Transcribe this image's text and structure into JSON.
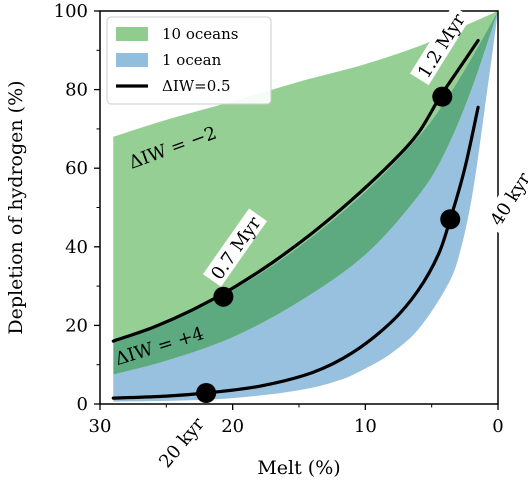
{
  "chart_data": {
    "type": "area",
    "xlabel": "Melt (%)",
    "ylabel": "Depletion of hydrogen (%)",
    "xlim": [
      30,
      0
    ],
    "ylim": [
      0,
      100
    ],
    "x_reversed": true,
    "x_ticks": [
      30,
      20,
      10,
      0
    ],
    "x_tick_labels": [
      "30",
      "20",
      "10",
      "0"
    ],
    "y_ticks": [
      0,
      20,
      40,
      60,
      80,
      100
    ],
    "y_tick_labels": [
      "0",
      "20",
      "40",
      "60",
      "80",
      "100"
    ],
    "legend_position": "top-left",
    "legend": [
      {
        "label": "10 oceans",
        "kind": "patch",
        "color": "#90cc8e"
      },
      {
        "label": "1 ocean",
        "kind": "patch",
        "color": "#92bedd"
      },
      {
        "label": "ΔIW=0.5",
        "kind": "line",
        "color": "#000000"
      }
    ],
    "bands": [
      {
        "name": "10 oceans",
        "color": "#90cc8e",
        "opacity": 0.95,
        "upper": [
          [
            29,
            68
          ],
          [
            25,
            72.3
          ],
          [
            20,
            77
          ],
          [
            15,
            82
          ],
          [
            10,
            86.5
          ],
          [
            6,
            91
          ],
          [
            4,
            94
          ],
          [
            2,
            97
          ],
          [
            0,
            100
          ]
        ],
        "lower": [
          [
            29,
            16.5
          ],
          [
            25,
            21
          ],
          [
            20,
            29
          ],
          [
            15,
            40
          ],
          [
            10,
            54
          ],
          [
            6,
            68
          ],
          [
            4,
            77
          ],
          [
            2,
            88
          ],
          [
            0,
            100
          ]
        ]
      },
      {
        "name": "1 ocean",
        "color": "#92bedd",
        "opacity": 0.95,
        "upper": [
          [
            29,
            7.5
          ],
          [
            25,
            11
          ],
          [
            20,
            17
          ],
          [
            15,
            26
          ],
          [
            10,
            38
          ],
          [
            6,
            53
          ],
          [
            4,
            64
          ],
          [
            2,
            80
          ],
          [
            0,
            100
          ]
        ],
        "lower": [
          [
            29,
            0.6
          ],
          [
            25,
            0.8
          ],
          [
            20,
            1.5
          ],
          [
            15,
            3.5
          ],
          [
            12,
            6
          ],
          [
            10,
            9
          ],
          [
            8,
            13
          ],
          [
            6,
            19
          ],
          [
            4,
            29
          ],
          [
            3,
            37
          ],
          [
            2,
            52
          ],
          [
            1,
            75
          ],
          [
            0,
            100
          ]
        ]
      },
      {
        "name": "overlap",
        "color": "#5daa80",
        "opacity": 1,
        "upper": [
          [
            29,
            16.5
          ],
          [
            25,
            21
          ],
          [
            20,
            29
          ],
          [
            15,
            40
          ],
          [
            10,
            54
          ],
          [
            6,
            68
          ],
          [
            4,
            77
          ],
          [
            2,
            88
          ],
          [
            0,
            100
          ]
        ],
        "lower": [
          [
            29,
            7.5
          ],
          [
            25,
            11
          ],
          [
            20,
            17
          ],
          [
            15,
            26
          ],
          [
            10,
            38
          ],
          [
            6,
            53
          ],
          [
            4,
            64
          ],
          [
            2,
            80
          ],
          [
            0,
            100
          ]
        ]
      }
    ],
    "series": [
      {
        "name": "ΔIW=0.5",
        "color": "#000000",
        "points": [
          [
            29,
            16
          ],
          [
            26,
            19.5
          ],
          [
            23,
            24
          ],
          [
            20,
            29.5
          ],
          [
            17,
            36
          ],
          [
            14,
            43.5
          ],
          [
            11,
            52
          ],
          [
            8,
            61.5
          ],
          [
            6,
            69
          ],
          [
            4.4,
            78
          ],
          [
            3,
            85
          ],
          [
            1.5,
            92.5
          ]
        ]
      },
      {
        "name": "lower",
        "color": "#000000",
        "points": [
          [
            29,
            1.5
          ],
          [
            25,
            2
          ],
          [
            22,
            2.8
          ],
          [
            18,
            4.5
          ],
          [
            14,
            8
          ],
          [
            11,
            13
          ],
          [
            8,
            21
          ],
          [
            6,
            29
          ],
          [
            4.5,
            38
          ],
          [
            3.6,
            47
          ],
          [
            2.5,
            60
          ],
          [
            1.5,
            75.5
          ]
        ]
      }
    ],
    "markers": [
      [
        20.7,
        27.3
      ],
      [
        4.2,
        78.2
      ],
      [
        22,
        2.8
      ],
      [
        3.6,
        47
      ]
    ],
    "annotations": [
      {
        "text": "ΔIW = −2",
        "x": 24.5,
        "y": 65,
        "rotate": -20,
        "anchor": "middle"
      },
      {
        "text": "ΔIW = +4",
        "x": 25.5,
        "y": 14.5,
        "rotate": -17,
        "anchor": "middle"
      },
      {
        "text": "0.7 Myr",
        "x": 19.7,
        "y": 39.5,
        "rotate": -55,
        "anchor": "middle",
        "box": true
      },
      {
        "text": "1.2 Myr",
        "x": 4.2,
        "y": 91,
        "rotate": -58,
        "anchor": "middle",
        "box": true
      },
      {
        "text": "40 kyr",
        "x": -1.0,
        "y": 52,
        "rotate": -58,
        "anchor": "middle",
        "box": true
      },
      {
        "text": "20 kyr",
        "x": 23.8,
        "y": -10,
        "rotate": -50,
        "anchor": "middle",
        "box": true
      }
    ]
  }
}
